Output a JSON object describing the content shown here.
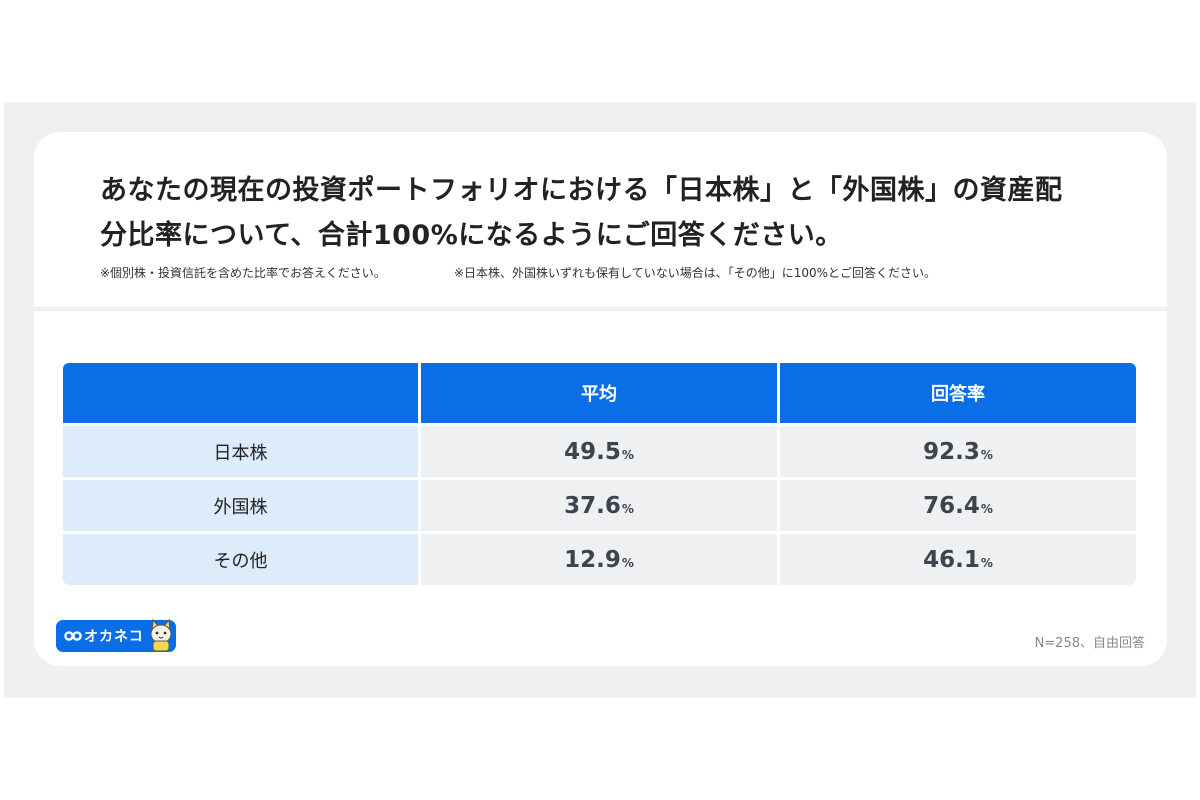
{
  "title": {
    "line1": "あなたの現在の投資ポートフォリオにおける「日本株」と「外国株」の資産配",
    "line2": "分比率について、合計100%になるようにご回答ください。"
  },
  "notes": [
    "※個別株・投資信託を含めた比率でお答えください。",
    "※日本株、外国株いずれも保有していない場合は、「その他」に100%とご回答ください。"
  ],
  "chart_data": {
    "type": "table",
    "columns": [
      "",
      "平均",
      "回答率"
    ],
    "rows": [
      {
        "label": "日本株",
        "average": "49.5",
        "response_rate": "92.3"
      },
      {
        "label": "外国株",
        "average": "37.6",
        "response_rate": "76.4"
      },
      {
        "label": "その他",
        "average": "12.9",
        "response_rate": "46.1"
      }
    ],
    "unit": "%"
  },
  "logo": {
    "text": "オカネコ",
    "icon": "mascot-cat-icon"
  },
  "footer_note": "N=258、自由回答",
  "colors": {
    "header_blue": "#0a6fe6",
    "label_cell": "#dcecfb",
    "value_cell": "#eff0f2",
    "background_band": "#eff0f1"
  }
}
